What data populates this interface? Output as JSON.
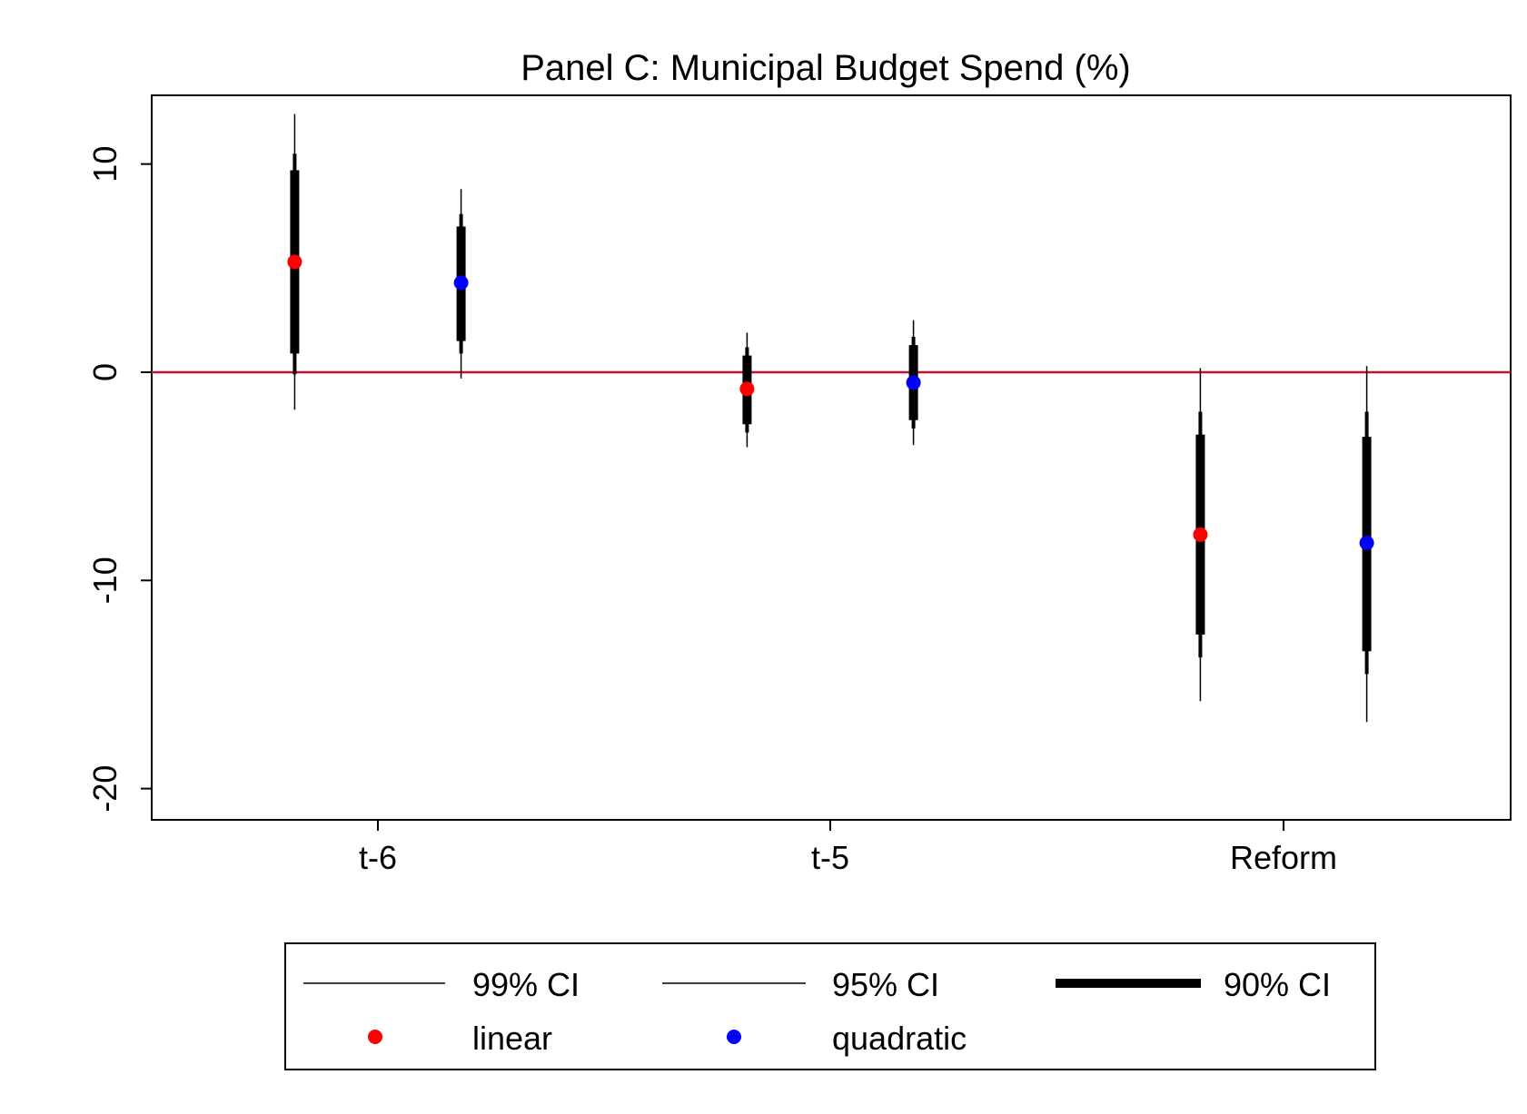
{
  "chart_data": {
    "type": "scatter",
    "title": "Panel C: Municipal Budget Spend (%)",
    "xlabel": "",
    "ylabel": "",
    "categories": [
      "t-6",
      "t-5",
      "Reform"
    ],
    "ylim": [
      -21.5,
      13.3
    ],
    "yticks": [
      10,
      0,
      -10,
      -20
    ],
    "ytick_labels": [
      "10",
      "0",
      "-10",
      "-20"
    ],
    "reference_line": {
      "y": 0,
      "color": "#c8102e"
    },
    "grid": false,
    "legend_position": "bottom",
    "colors": {
      "linear": "#ff0000",
      "quadratic": "#0000ff",
      "ci": "#000000"
    },
    "series": [
      {
        "name": "linear",
        "offset": -0.43,
        "points": [
          {
            "category": "t-6",
            "estimate": 5.3,
            "ci90": [
              0.9,
              9.7
            ],
            "ci95": [
              -0.1,
              10.5
            ],
            "ci99": [
              -1.8,
              12.4
            ]
          },
          {
            "category": "t-5",
            "estimate": -0.8,
            "ci90": [
              -2.5,
              0.8
            ],
            "ci95": [
              -2.9,
              1.2
            ],
            "ci99": [
              -3.6,
              1.9
            ]
          },
          {
            "category": "Reform",
            "estimate": -7.8,
            "ci90": [
              -12.6,
              -3.0
            ],
            "ci95": [
              -13.7,
              -1.9
            ],
            "ci99": [
              -15.8,
              0.2
            ]
          }
        ]
      },
      {
        "name": "quadratic",
        "offset": 0.43,
        "points": [
          {
            "category": "t-6",
            "estimate": 4.3,
            "ci90": [
              1.5,
              7.0
            ],
            "ci95": [
              0.9,
              7.6
            ],
            "ci99": [
              -0.3,
              8.8
            ]
          },
          {
            "category": "t-5",
            "estimate": -0.5,
            "ci90": [
              -2.3,
              1.3
            ],
            "ci95": [
              -2.7,
              1.7
            ],
            "ci99": [
              -3.5,
              2.5
            ]
          },
          {
            "category": "Reform",
            "estimate": -8.2,
            "ci90": [
              -13.4,
              -3.1
            ],
            "ci95": [
              -14.5,
              -1.9
            ],
            "ci99": [
              -16.8,
              0.3
            ]
          }
        ]
      }
    ],
    "legend": {
      "ci99_label": "99% CI",
      "ci95_label": "95% CI",
      "ci90_label": "90% CI",
      "linear_label": "linear",
      "quadratic_label": "quadratic"
    }
  }
}
